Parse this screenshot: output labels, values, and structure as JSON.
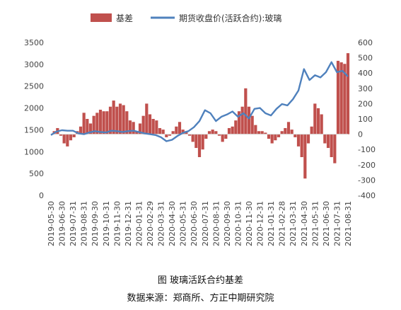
{
  "chart_data": {
    "type": "bar+line",
    "legend": {
      "placement": "top-center",
      "entries": [
        "基差",
        "期货收盘价(活跃合约):玻璃"
      ]
    },
    "colors": {
      "basis": "#c0504d",
      "futures": "#4f81bd"
    },
    "left_axis": {
      "ylim": [
        0,
        3500
      ],
      "ticks": [
        "0",
        "500",
        "1000",
        "1500",
        "2000",
        "2500",
        "3000",
        "3500"
      ]
    },
    "right_axis": {
      "ylim": [
        -400,
        600
      ],
      "ticks": [
        "-400",
        "-300",
        "-200",
        "-100",
        "0",
        "100",
        "200",
        "300",
        "400",
        "500",
        "600"
      ]
    },
    "x_ticks": [
      "2019-05-30",
      "2019-06-30",
      "2019-07-31",
      "2019-08-31",
      "2019-09-30",
      "2019-10-31",
      "2019-11-30",
      "2019-12-31",
      "2020-01-31",
      "2020-02-29",
      "2020-03-31",
      "2020-04-30",
      "2020-05-31",
      "2020-06-30",
      "2020-07-31",
      "2020-08-31",
      "2020-09-30",
      "2020-10-31",
      "2020-11-30",
      "2020-12-31",
      "2021-01-31",
      "2021-02-28",
      "2021-03-31",
      "2021-04-30",
      "2021-05-31",
      "2021-06-30",
      "2021-07-31",
      "2021-08-31"
    ],
    "x_range": [
      0,
      27
    ],
    "futures_price": {
      "name": "期货收盘价(活跃合约):玻璃",
      "axis": "left",
      "points": [
        [
          0,
          1380
        ],
        [
          0.5,
          1460
        ],
        [
          1,
          1490
        ],
        [
          1.5,
          1480
        ],
        [
          2,
          1480
        ],
        [
          2.5,
          1420
        ],
        [
          3,
          1400
        ],
        [
          3.5,
          1440
        ],
        [
          4,
          1470
        ],
        [
          4.5,
          1450
        ],
        [
          5,
          1440
        ],
        [
          5.5,
          1480
        ],
        [
          6,
          1470
        ],
        [
          6.5,
          1450
        ],
        [
          7,
          1470
        ],
        [
          7.5,
          1480
        ],
        [
          8,
          1450
        ],
        [
          8.5,
          1420
        ],
        [
          9,
          1400
        ],
        [
          9.5,
          1380
        ],
        [
          10,
          1330
        ],
        [
          10.5,
          1240
        ],
        [
          11,
          1270
        ],
        [
          11.5,
          1360
        ],
        [
          12,
          1430
        ],
        [
          12.5,
          1470
        ],
        [
          13,
          1560
        ],
        [
          13.5,
          1700
        ],
        [
          14,
          1950
        ],
        [
          14.5,
          1880
        ],
        [
          15,
          1700
        ],
        [
          15.5,
          1800
        ],
        [
          16,
          1850
        ],
        [
          16.5,
          1920
        ],
        [
          17,
          1800
        ],
        [
          17.5,
          1880
        ],
        [
          18,
          1760
        ],
        [
          18.5,
          1980
        ],
        [
          19,
          2000
        ],
        [
          19.5,
          1880
        ],
        [
          20,
          1830
        ],
        [
          20.5,
          1980
        ],
        [
          21,
          2090
        ],
        [
          21.5,
          2060
        ],
        [
          22,
          2200
        ],
        [
          22.5,
          2400
        ],
        [
          23,
          2890
        ],
        [
          23.5,
          2640
        ],
        [
          24,
          2750
        ],
        [
          24.5,
          2700
        ],
        [
          25,
          2820
        ],
        [
          25.5,
          3050
        ],
        [
          26,
          2820
        ],
        [
          26.5,
          2850
        ],
        [
          27,
          2720
        ]
      ]
    },
    "basis": {
      "name": "基差",
      "axis": "right",
      "points": [
        [
          0.3,
          20
        ],
        [
          0.6,
          40
        ],
        [
          0.9,
          -10
        ],
        [
          1.2,
          -60
        ],
        [
          1.5,
          -80
        ],
        [
          1.8,
          -40
        ],
        [
          2.1,
          -20
        ],
        [
          2.4,
          20
        ],
        [
          2.7,
          50
        ],
        [
          3.0,
          140
        ],
        [
          3.3,
          100
        ],
        [
          3.6,
          70
        ],
        [
          3.9,
          120
        ],
        [
          4.2,
          140
        ],
        [
          4.5,
          160
        ],
        [
          4.8,
          150
        ],
        [
          5.1,
          150
        ],
        [
          5.4,
          180
        ],
        [
          5.7,
          220
        ],
        [
          6.0,
          180
        ],
        [
          6.3,
          200
        ],
        [
          6.6,
          190
        ],
        [
          6.9,
          150
        ],
        [
          7.2,
          90
        ],
        [
          7.5,
          80
        ],
        [
          7.8,
          20
        ],
        [
          8.1,
          70
        ],
        [
          8.4,
          120
        ],
        [
          8.7,
          200
        ],
        [
          9.0,
          130
        ],
        [
          9.3,
          100
        ],
        [
          9.6,
          90
        ],
        [
          9.9,
          40
        ],
        [
          10.2,
          30
        ],
        [
          10.5,
          -20
        ],
        [
          10.8,
          -10
        ],
        [
          11.1,
          20
        ],
        [
          11.4,
          50
        ],
        [
          11.7,
          80
        ],
        [
          12.0,
          30
        ],
        [
          12.3,
          20
        ],
        [
          12.6,
          -10
        ],
        [
          12.9,
          -50
        ],
        [
          13.2,
          -90
        ],
        [
          13.5,
          -150
        ],
        [
          13.8,
          -100
        ],
        [
          14.1,
          -30
        ],
        [
          14.4,
          20
        ],
        [
          14.7,
          30
        ],
        [
          15.0,
          20
        ],
        [
          15.3,
          -10
        ],
        [
          15.6,
          -50
        ],
        [
          15.9,
          -30
        ],
        [
          16.2,
          40
        ],
        [
          16.5,
          50
        ],
        [
          16.8,
          90
        ],
        [
          17.1,
          150
        ],
        [
          17.4,
          180
        ],
        [
          17.7,
          300
        ],
        [
          18.0,
          180
        ],
        [
          18.3,
          120
        ],
        [
          18.6,
          60
        ],
        [
          18.9,
          20
        ],
        [
          19.2,
          20
        ],
        [
          19.5,
          10
        ],
        [
          19.8,
          -30
        ],
        [
          20.1,
          -60
        ],
        [
          20.4,
          -40
        ],
        [
          20.7,
          -20
        ],
        [
          21.0,
          20
        ],
        [
          21.3,
          40
        ],
        [
          21.6,
          80
        ],
        [
          21.9,
          30
        ],
        [
          22.2,
          -20
        ],
        [
          22.5,
          -80
        ],
        [
          22.8,
          -150
        ],
        [
          23.1,
          -290
        ],
        [
          23.4,
          -60
        ],
        [
          23.7,
          50
        ],
        [
          24.0,
          200
        ],
        [
          24.3,
          170
        ],
        [
          24.6,
          130
        ],
        [
          24.9,
          -60
        ],
        [
          25.2,
          -90
        ],
        [
          25.5,
          -150
        ],
        [
          25.8,
          -190
        ],
        [
          26.1,
          480
        ],
        [
          26.4,
          470
        ],
        [
          26.7,
          460
        ],
        [
          27.0,
          530
        ]
      ]
    }
  },
  "caption": {
    "title": "图    玻璃活跃合约基差",
    "source": "数据来源：郑商所、方正中期研究院"
  }
}
